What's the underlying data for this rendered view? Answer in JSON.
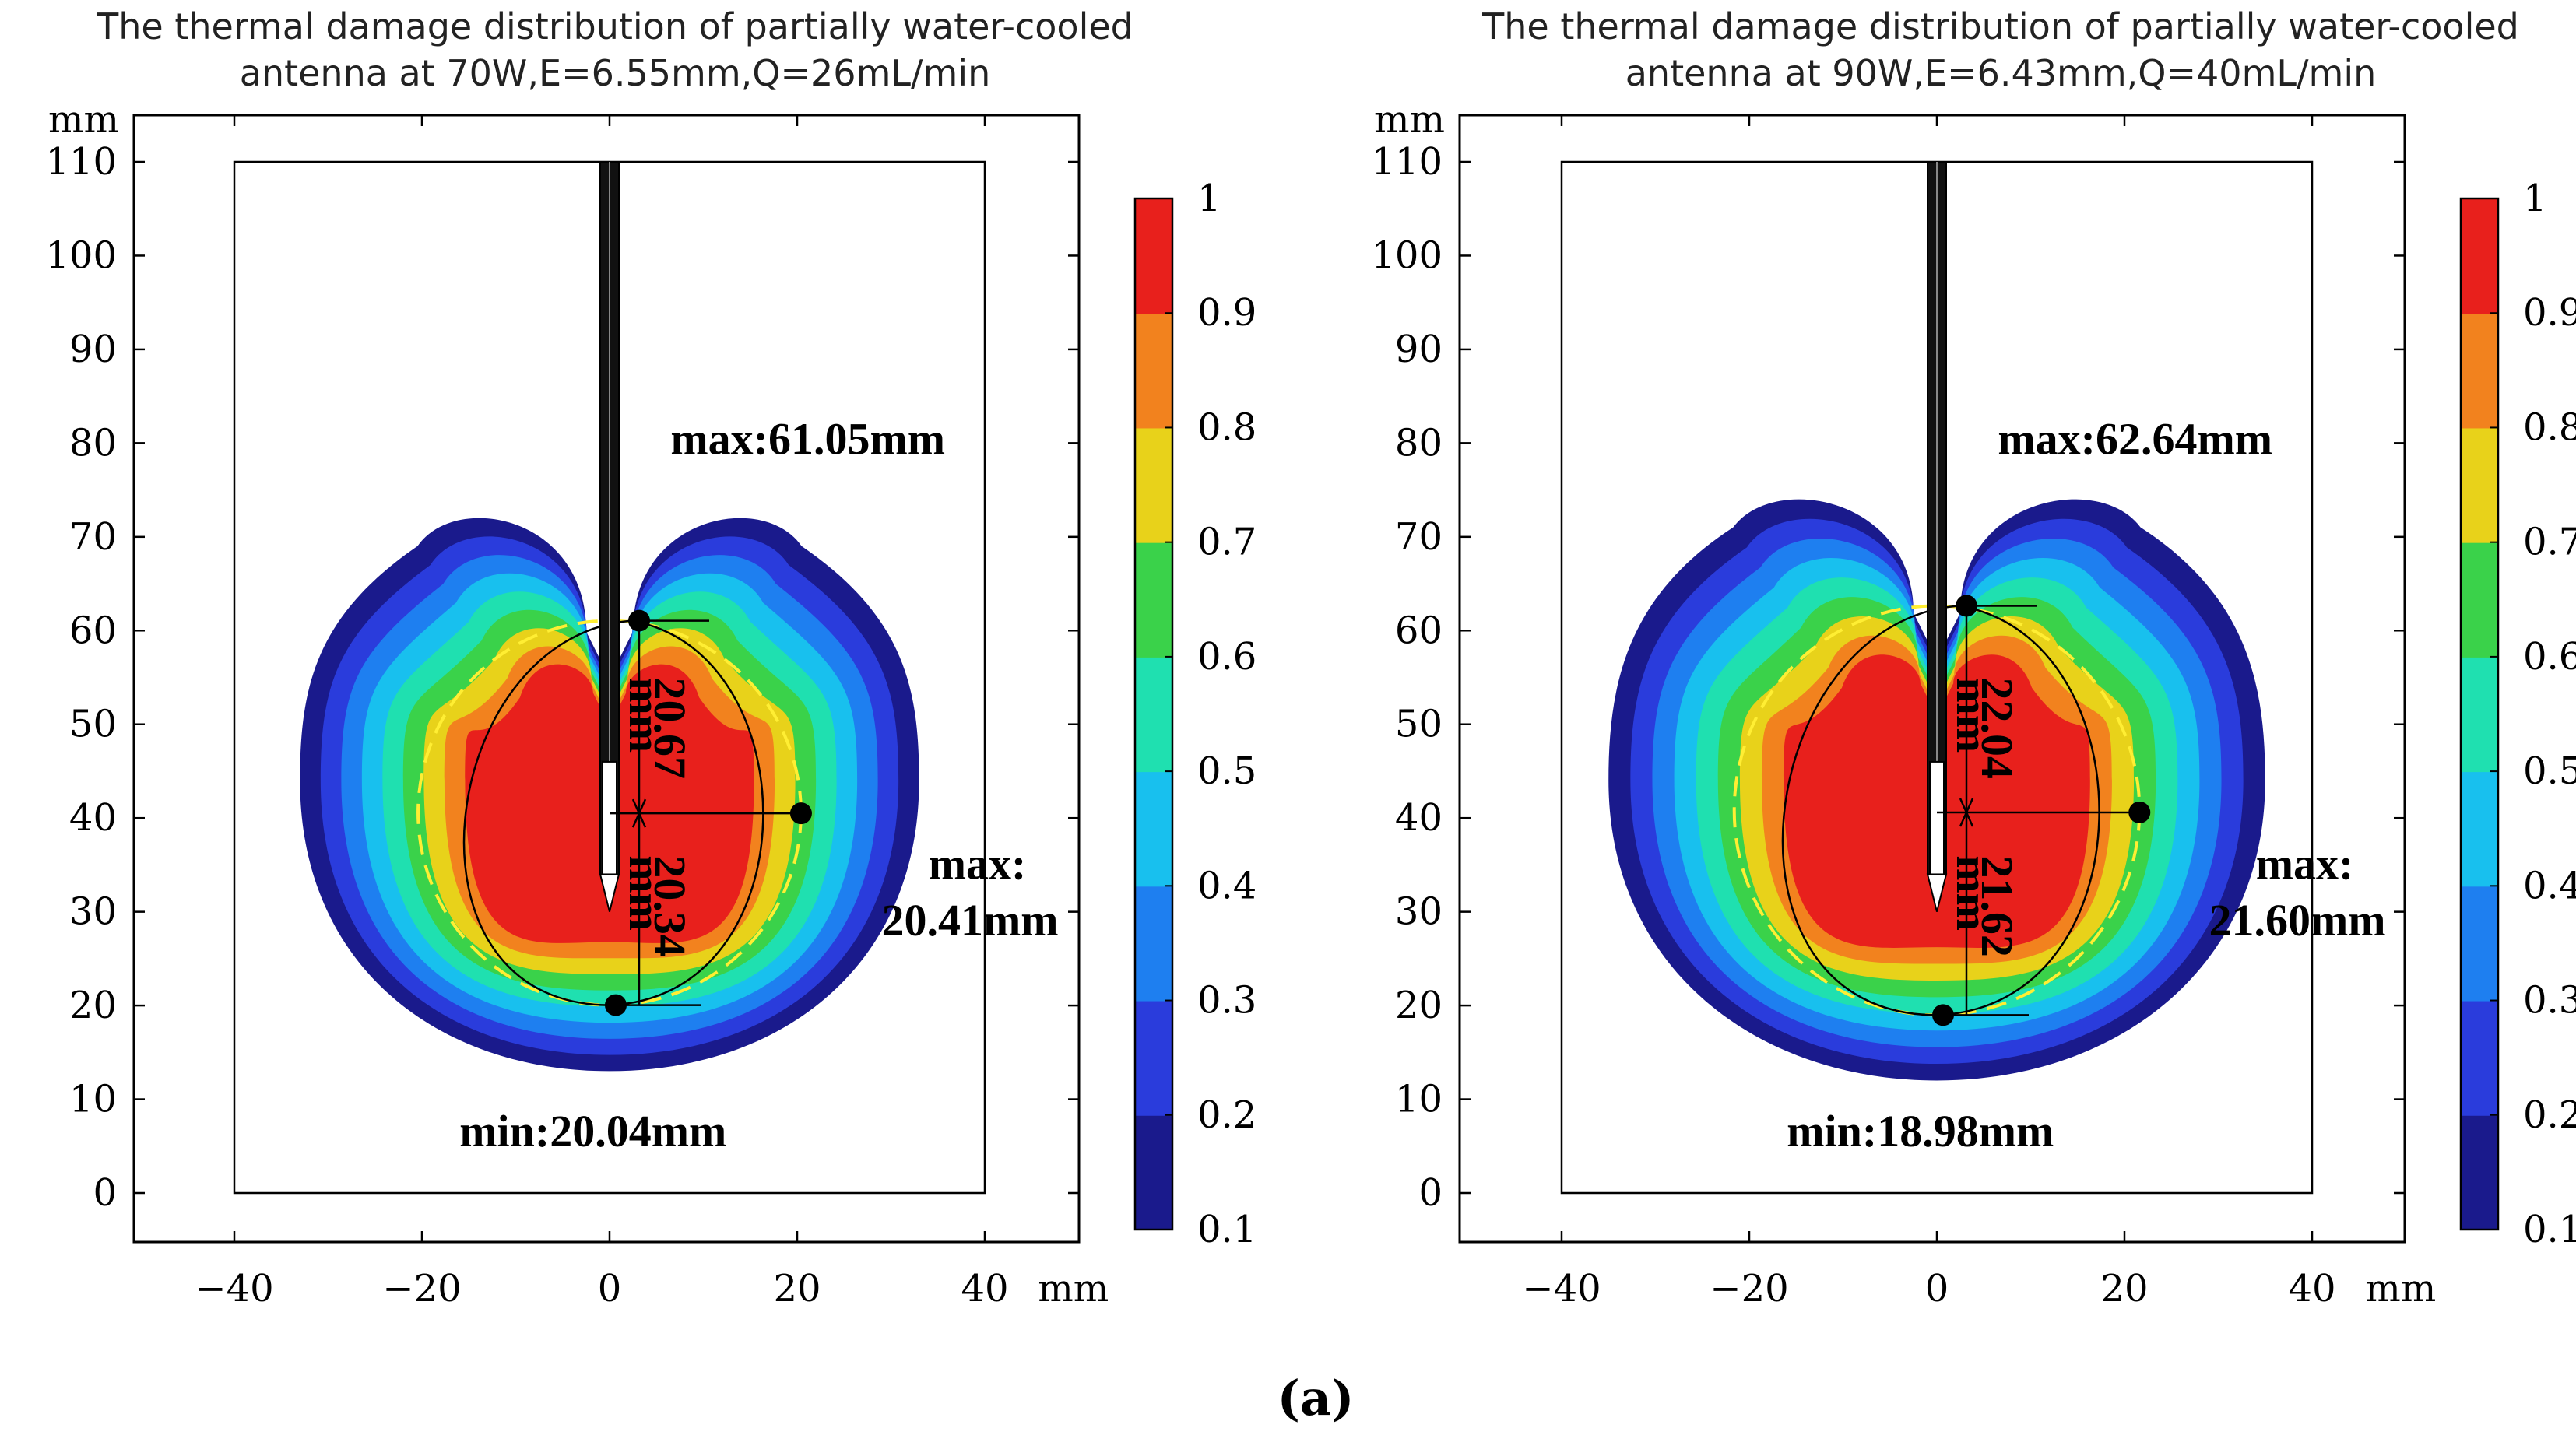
{
  "figure_label": "(a)",
  "colormap": [
    "#1a1a8c",
    "#2a3cdc",
    "#1e7ff0",
    "#18c0ee",
    "#1fe0b0",
    "#3ad24a",
    "#e8d21a",
    "#f2821e",
    "#e8201c"
  ],
  "colorbar": {
    "ticks": [
      "0.1",
      "0.2",
      "0.3",
      "0.4",
      "0.5",
      "0.6",
      "0.7",
      "0.8",
      "0.9",
      "1"
    ],
    "values": [
      0.1,
      0.2,
      0.3,
      0.4,
      0.5,
      0.6,
      0.7,
      0.8,
      0.9,
      1
    ]
  },
  "chart_data": [
    {
      "type": "heatmap",
      "title": "The thermal damage distribution of partially water-cooled antenna at 70W,E=6.55mm,Q=26mL/min",
      "title_lines": [
        "The thermal damage distribution of partially water-cooled",
        "antenna at 70W,E=6.55mm,Q=26mL/min"
      ],
      "xlabel": "mm",
      "ylabel": "mm",
      "xlim": [
        -50,
        50
      ],
      "ylim": [
        -5,
        115
      ],
      "xticks": [
        -40,
        -20,
        0,
        20,
        40
      ],
      "xtick_labels": [
        "−40",
        "−20",
        "0",
        "20",
        "40"
      ],
      "yticks": [
        0,
        10,
        20,
        30,
        40,
        50,
        60,
        70,
        80,
        90,
        100,
        110
      ],
      "ytick_labels": [
        "0",
        "10",
        "20",
        "30",
        "40",
        "50",
        "60",
        "70",
        "80",
        "90",
        "100",
        "110"
      ],
      "zone": {
        "top": 74,
        "bottom": 13,
        "x_left": -33,
        "x_right": 33,
        "y_widest": 44
      },
      "ablation": {
        "top": 61.05,
        "bottom": 20.04,
        "radius": 20.41,
        "center_y": 40.5
      },
      "labels": {
        "max_top": "max:61.05mm",
        "min_bottom": "min:20.04mm",
        "max_side_1": "max:",
        "max_side_2": "20.41mm",
        "up_val": "20.67",
        "up_unit": "mm",
        "down_val": "20.34",
        "down_unit": "mm"
      }
    },
    {
      "type": "heatmap",
      "title": "The thermal damage distribution of partially water-cooled antenna at 90W,E=6.43mm,Q=40mL/min",
      "title_lines": [
        "The thermal damage distribution of partially water-cooled",
        "antenna at 90W,E=6.43mm,Q=40mL/min"
      ],
      "xlabel": "mm",
      "ylabel": "mm",
      "xlim": [
        -50,
        50
      ],
      "ylim": [
        -5,
        115
      ],
      "xticks": [
        -40,
        -20,
        0,
        20,
        40
      ],
      "xtick_labels": [
        "−40",
        "−20",
        "0",
        "20",
        "40"
      ],
      "yticks": [
        0,
        10,
        20,
        30,
        40,
        50,
        60,
        70,
        80,
        90,
        100,
        110
      ],
      "ytick_labels": [
        "0",
        "10",
        "20",
        "30",
        "40",
        "50",
        "60",
        "70",
        "80",
        "90",
        "100",
        "110"
      ],
      "zone": {
        "top": 76,
        "bottom": 12,
        "x_left": -35,
        "x_right": 35,
        "y_widest": 44
      },
      "ablation": {
        "top": 62.64,
        "bottom": 18.98,
        "radius": 21.6,
        "center_y": 40.6
      },
      "labels": {
        "max_top": "max:62.64mm",
        "min_bottom": "min:18.98mm",
        "max_side_1": "max:",
        "max_side_2": "21.60mm",
        "up_val": "22.04",
        "up_unit": "mm",
        "down_val": "21.62",
        "down_unit": "mm"
      }
    }
  ]
}
